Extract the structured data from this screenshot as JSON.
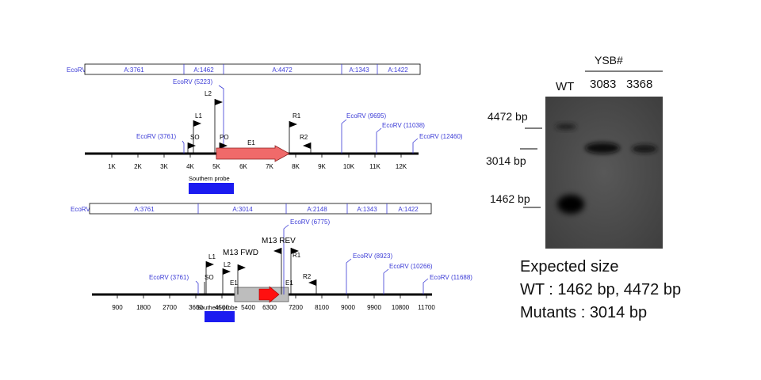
{
  "map1": {
    "enzyme": "EcoRV",
    "fragments": [
      "A:3761",
      "A:1462",
      "A:4472",
      "A:1343",
      "A:1422"
    ],
    "cut_sites": [
      {
        "label": "EcoRV (3761)",
        "pos": 3761
      },
      {
        "label": "EcoRV (5223)",
        "pos": 5223
      },
      {
        "label": "EcoRV (9695)",
        "pos": 9695
      },
      {
        "label": "EcoRV (11038)",
        "pos": 11038
      },
      {
        "label": "EcoRV (12460)",
        "pos": 12460
      }
    ],
    "primers": [
      {
        "name": "L2",
        "pos": 4920,
        "dir": "right"
      },
      {
        "name": "L1",
        "pos": 4130,
        "dir": "right"
      },
      {
        "name": "SO",
        "pos": 3900,
        "dir": "right"
      },
      {
        "name": "PO",
        "pos": 5380,
        "dir": "right"
      },
      {
        "name": "R1",
        "pos": 7780,
        "dir": "right"
      },
      {
        "name": "R2",
        "pos": 8520,
        "dir": "left"
      }
    ],
    "gene": {
      "label": "E1",
      "start": 5000,
      "end": 7800
    },
    "ticks": [
      "1K",
      "2K",
      "3K",
      "4K",
      "5K",
      "6K",
      "7K",
      "8K",
      "9K",
      "10K",
      "11K",
      "12K"
    ],
    "probe_label": "Southern probe"
  },
  "map2": {
    "enzyme": "EcoRV",
    "fragments": [
      "A:3761",
      "A:3014",
      "A:2148",
      "A:1343",
      "A:1422"
    ],
    "cut_sites": [
      {
        "label": "EcoRV (3761)",
        "pos": 3761
      },
      {
        "label": "EcoRV (6775)",
        "pos": 6775
      },
      {
        "label": "EcoRV (8923)",
        "pos": 8923
      },
      {
        "label": "EcoRV (10266)",
        "pos": 10266
      },
      {
        "label": "EcoRV (11688)",
        "pos": 11688
      }
    ],
    "primers": [
      {
        "name": "M13 REV",
        "pos": 6600,
        "dir": "left"
      },
      {
        "name": "M13 FWD",
        "pos": 5400,
        "dir": "right"
      },
      {
        "name": "L1",
        "pos": 4060,
        "dir": "right"
      },
      {
        "name": "L2",
        "pos": 4800,
        "dir": "right"
      },
      {
        "name": "R1",
        "pos": 6740,
        "dir": "right"
      },
      {
        "name": "R2",
        "pos": 7520,
        "dir": "left"
      }
    ],
    "labels": {
      "so": "SO",
      "e1_left": "E1",
      "e1_right": "E1"
    },
    "ticks": [
      "900",
      "1800",
      "2700",
      "3600",
      "4500",
      "5400",
      "6300",
      "7200",
      "8100",
      "9000",
      "9900",
      "10800",
      "11700"
    ],
    "probe_label": "Southern probe"
  },
  "blot": {
    "group_label": "YSB#",
    "lanes": [
      "WT",
      "3083",
      "3368"
    ],
    "markers": [
      "4472 bp",
      "3014 bp",
      "1462 bp"
    ]
  },
  "expected": {
    "title": "Expected size",
    "line1": "WT : 1462 bp, 4472 bp",
    "line2": "Mutants : 3014 bp"
  },
  "colors": {
    "enzyme_blue": "#3b3bd6",
    "probe_blue": "#1b1bf0",
    "gene_fill": "#f06a6a",
    "cassette_fill": "#bdbdbd",
    "marker_red": "#ff1010"
  }
}
